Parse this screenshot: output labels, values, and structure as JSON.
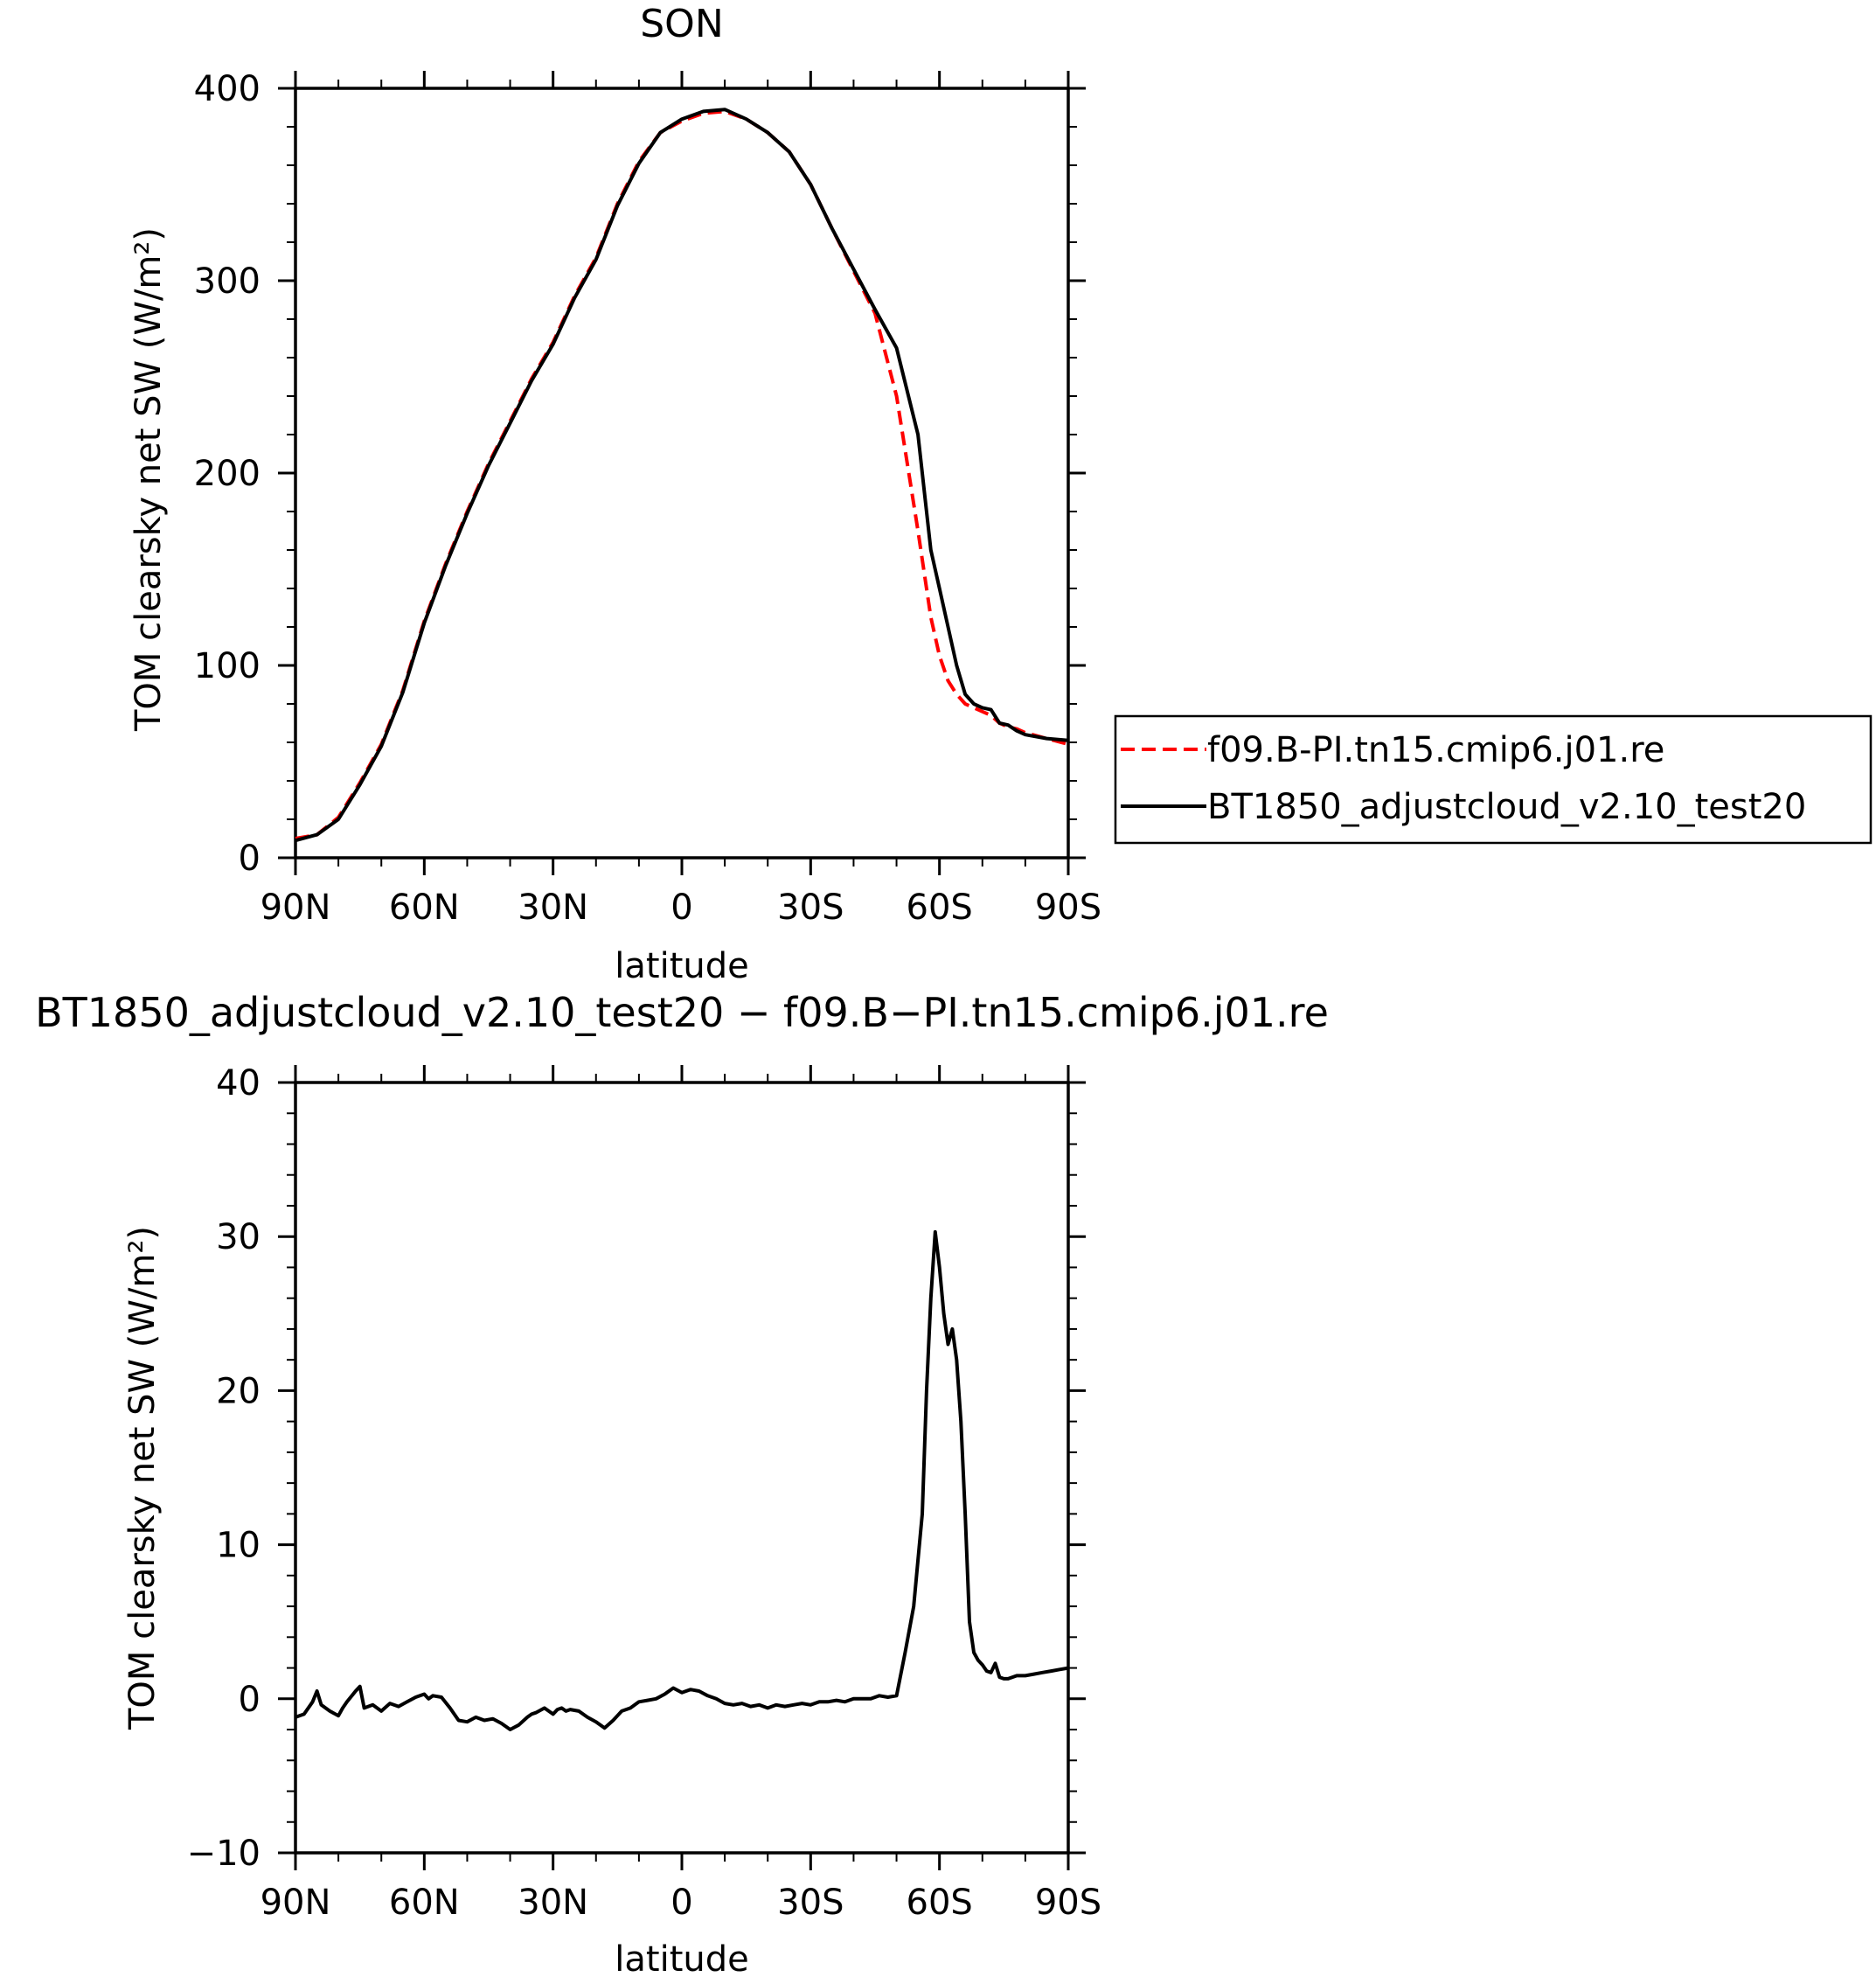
{
  "chart_data": [
    {
      "type": "line",
      "title": "SON",
      "xlabel": "latitude",
      "ylabel": "TOM clearsky net SW (W/m²)",
      "xlim": [
        90,
        -90
      ],
      "ylim": [
        0,
        400
      ],
      "x_ticks": [
        90,
        60,
        30,
        0,
        -30,
        -60,
        -90
      ],
      "x_tick_labels": [
        "90N",
        "60N",
        "30N",
        "0",
        "30S",
        "60S",
        "90S"
      ],
      "y_ticks": [
        0,
        100,
        200,
        300,
        400
      ],
      "y_tick_labels": [
        "0",
        "100",
        "200",
        "300",
        "400"
      ],
      "legend_position": "right",
      "grid": false,
      "series": [
        {
          "name": "f09.B-PI.tn15.cmip6.j01.re",
          "color": "#ff0000",
          "style": "dashed",
          "x": [
            90,
            85,
            80,
            75,
            70,
            65,
            60,
            55,
            50,
            45,
            40,
            35,
            30,
            25,
            20,
            15,
            10,
            5,
            0,
            -5,
            -10,
            -15,
            -20,
            -25,
            -30,
            -35,
            -40,
            -45,
            -50,
            -55,
            -58,
            -60,
            -62,
            -64,
            -66,
            -68,
            -70,
            -72,
            -74,
            -76,
            -78,
            -80,
            -85,
            -90
          ],
          "y": [
            10,
            12,
            21,
            39,
            59,
            87,
            123,
            153,
            180,
            205,
            227,
            249,
            268,
            292,
            312,
            340,
            362,
            377,
            383,
            387,
            388,
            384,
            377,
            367,
            350,
            327,
            305,
            283,
            240,
            170,
            125,
            105,
            92,
            85,
            80,
            78,
            76,
            74,
            70,
            68,
            67,
            65,
            62,
            59
          ]
        },
        {
          "name": "BT1850_adjustcloud_v2.10_test20",
          "color": "#000000",
          "style": "solid",
          "x": [
            90,
            85,
            80,
            75,
            70,
            65,
            60,
            55,
            50,
            45,
            40,
            35,
            30,
            25,
            20,
            15,
            10,
            5,
            0,
            -5,
            -10,
            -15,
            -20,
            -25,
            -30,
            -35,
            -40,
            -45,
            -50,
            -55,
            -58,
            -60,
            -62,
            -64,
            -66,
            -68,
            -70,
            -72,
            -74,
            -76,
            -78,
            -80,
            -85,
            -90
          ],
          "y": [
            9,
            12,
            20,
            38,
            58,
            86,
            122,
            152,
            179,
            204,
            226,
            248,
            267,
            291,
            311,
            339,
            361,
            377,
            384,
            388,
            389,
            384,
            377,
            367,
            350,
            327,
            306,
            285,
            265,
            220,
            160,
            140,
            120,
            100,
            85,
            80,
            78,
            77,
            70,
            69,
            66,
            64,
            62,
            61
          ]
        }
      ]
    },
    {
      "type": "line",
      "title": "BT1850_adjustcloud_v2.10_test20 − f09.B−PI.tn15.cmip6.j01.re",
      "xlabel": "latitude",
      "ylabel": "TOM clearsky net SW (W/m²)",
      "xlim": [
        90,
        -90
      ],
      "ylim": [
        -10,
        40
      ],
      "x_ticks": [
        90,
        60,
        30,
        0,
        -30,
        -60,
        -90
      ],
      "x_tick_labels": [
        "90N",
        "60N",
        "30N",
        "0",
        "30S",
        "60S",
        "90S"
      ],
      "y_ticks": [
        -10,
        0,
        10,
        20,
        30,
        40
      ],
      "y_tick_labels": [
        "−10",
        "0",
        "10",
        "20",
        "30",
        "40"
      ],
      "grid": false,
      "series": [
        {
          "color": "#000000",
          "style": "solid",
          "x": [
            90,
            88,
            86,
            85,
            84,
            82,
            80,
            79,
            78,
            76,
            75,
            74,
            72,
            70,
            68,
            66,
            64,
            62,
            60,
            59,
            58,
            56,
            54,
            52,
            50,
            48,
            46,
            44,
            42,
            40,
            38,
            36,
            35,
            34,
            32,
            30,
            29,
            28,
            27,
            26,
            24,
            22,
            20,
            18,
            16,
            15,
            14,
            12,
            10,
            8,
            6,
            4,
            2,
            0,
            -2,
            -4,
            -6,
            -8,
            -10,
            -12,
            -14,
            -16,
            -18,
            -20,
            -22,
            -24,
            -26,
            -28,
            -30,
            -32,
            -34,
            -36,
            -38,
            -40,
            -42,
            -44,
            -46,
            -48,
            -50,
            -52,
            -54,
            -55,
            -56,
            -57,
            -58,
            -59,
            -60,
            -61,
            -62,
            -63,
            -64,
            -65,
            -66,
            -67,
            -68,
            -69,
            -70,
            -71,
            -72,
            -73,
            -74,
            -75,
            -76,
            -77,
            -78,
            -80,
            -82,
            -84,
            -86,
            -88,
            -90
          ],
          "y": [
            -1.2,
            -1,
            -0.2,
            0.5,
            -0.4,
            -0.8,
            -1.1,
            -0.6,
            -0.2,
            0.5,
            0.8,
            -0.6,
            -0.4,
            -0.8,
            -0.3,
            -0.5,
            -0.2,
            0.1,
            0.3,
            0.0,
            0.2,
            0.1,
            -0.6,
            -1.4,
            -1.5,
            -1.2,
            -1.4,
            -1.3,
            -1.6,
            -2.0,
            -1.7,
            -1.2,
            -1.0,
            -0.9,
            -0.6,
            -1.0,
            -0.7,
            -0.6,
            -0.8,
            -0.7,
            -0.8,
            -1.2,
            -1.5,
            -1.9,
            -1.4,
            -1.1,
            -0.8,
            -0.6,
            -0.2,
            -0.1,
            0.0,
            0.3,
            0.7,
            0.4,
            0.6,
            0.5,
            0.2,
            0.0,
            -0.3,
            -0.4,
            -0.3,
            -0.5,
            -0.4,
            -0.6,
            -0.4,
            -0.5,
            -0.4,
            -0.3,
            -0.4,
            -0.2,
            -0.2,
            -0.1,
            -0.2,
            0.0,
            0.0,
            0.0,
            0.2,
            0.1,
            0.2,
            3.0,
            6.0,
            9.0,
            12.0,
            20.0,
            26.0,
            30.3,
            28.0,
            25.0,
            23.0,
            24.0,
            22.0,
            18.0,
            12.0,
            5.0,
            3.0,
            2.5,
            2.2,
            1.8,
            1.7,
            2.3,
            1.4,
            1.3,
            1.3,
            1.4,
            1.5,
            1.5,
            1.6,
            1.7,
            1.8,
            1.9,
            2.0
          ]
        }
      ]
    }
  ]
}
